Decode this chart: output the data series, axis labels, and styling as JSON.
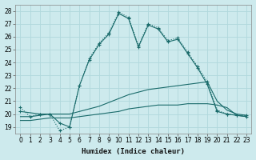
{
  "xlabel": "Humidex (Indice chaleur)",
  "background_color": "#cdeaed",
  "grid_color": "#b0d8dc",
  "line_color": "#1a6b6b",
  "xlim": [
    -0.5,
    23.5
  ],
  "ylim": [
    18.5,
    28.5
  ],
  "xticks": [
    0,
    1,
    2,
    3,
    4,
    5,
    6,
    7,
    8,
    9,
    10,
    11,
    12,
    13,
    14,
    15,
    16,
    17,
    18,
    19,
    20,
    21,
    22,
    23
  ],
  "yticks": [
    19,
    20,
    21,
    22,
    23,
    24,
    25,
    26,
    27,
    28
  ],
  "lines": [
    {
      "x": [
        0,
        1,
        2,
        3,
        4,
        5,
        6,
        7,
        8,
        9,
        10,
        11,
        12,
        13,
        14,
        15,
        16,
        17,
        18,
        19,
        20,
        21,
        22,
        23
      ],
      "y": [
        20.5,
        19.8,
        20.0,
        20.0,
        18.7,
        19.0,
        22.2,
        24.3,
        25.5,
        26.3,
        27.9,
        27.5,
        25.3,
        27.0,
        26.7,
        25.7,
        25.9,
        24.8,
        23.7,
        22.5,
        20.3,
        20.0,
        19.9,
        19.9
      ],
      "linestyle": ":",
      "marker": "+"
    },
    {
      "x": [
        0,
        2,
        3,
        4,
        5,
        6,
        7,
        8,
        9,
        10,
        11,
        12,
        13,
        14,
        15,
        16,
        17,
        18,
        19,
        20,
        21,
        22,
        23
      ],
      "y": [
        20.2,
        20.0,
        20.0,
        19.3,
        19.0,
        22.2,
        24.2,
        25.4,
        26.2,
        27.8,
        27.4,
        25.2,
        26.9,
        26.6,
        25.6,
        25.8,
        24.7,
        23.6,
        22.3,
        20.2,
        20.0,
        19.9,
        19.8
      ],
      "linestyle": "-",
      "marker": "+"
    },
    {
      "x": [
        0,
        1,
        2,
        3,
        4,
        5,
        6,
        7,
        8,
        9,
        10,
        11,
        12,
        13,
        14,
        15,
        16,
        17,
        18,
        19,
        20,
        21,
        22,
        23
      ],
      "y": [
        19.8,
        19.8,
        19.9,
        20.0,
        20.0,
        20.0,
        20.2,
        20.4,
        20.6,
        20.9,
        21.2,
        21.5,
        21.7,
        21.9,
        22.0,
        22.1,
        22.2,
        22.3,
        22.4,
        22.5,
        21.0,
        20.3,
        20.0,
        19.9
      ],
      "linestyle": "-",
      "marker": null
    },
    {
      "x": [
        0,
        1,
        2,
        3,
        4,
        5,
        6,
        7,
        8,
        9,
        10,
        11,
        12,
        13,
        14,
        15,
        16,
        17,
        18,
        19,
        20,
        21,
        22,
        23
      ],
      "y": [
        19.5,
        19.5,
        19.6,
        19.7,
        19.7,
        19.7,
        19.8,
        19.9,
        20.0,
        20.1,
        20.2,
        20.4,
        20.5,
        20.6,
        20.7,
        20.7,
        20.7,
        20.8,
        20.8,
        20.8,
        20.7,
        20.5,
        19.9,
        19.8
      ],
      "linestyle": "-",
      "marker": null
    }
  ]
}
